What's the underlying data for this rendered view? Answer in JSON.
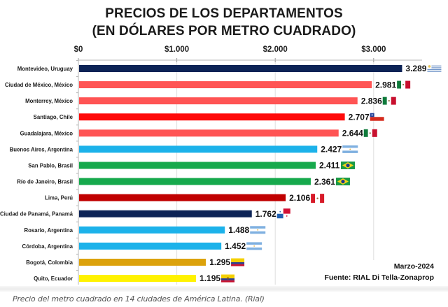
{
  "chart_data": {
    "type": "bar",
    "orientation": "horizontal",
    "title": "PRECIOS DE LOS DEPARTAMENTOS",
    "subtitle": "(EN DÓLARES POR METRO CUADRADO)",
    "xlabel": "",
    "ylabel": "",
    "xlim": [
      0,
      3500
    ],
    "xticks": [
      0,
      1000,
      2000,
      3000
    ],
    "xtick_labels": [
      "$0",
      "$1.000",
      "$2.000",
      "$3.000"
    ],
    "grid": true,
    "categories": [
      "Montevideo, Uruguay",
      "Ciudad de México, México",
      "Monterrey, México",
      "Santiago, Chile",
      "Guadalajara, México",
      "Buenos Aires, Argentina",
      "San Pablo, Brasil",
      "Río de Janeiro, Brasil",
      "Lima, Perú",
      "Ciudad de Panamá, Panamá",
      "Rosario, Argentina",
      "Córdoba, Argentina",
      "Bogotá, Colombia",
      "Quito, Ecuador"
    ],
    "values": [
      3289,
      2981,
      2836,
      2707,
      2644,
      2427,
      2411,
      2361,
      2106,
      1762,
      1488,
      1452,
      1295,
      1195
    ],
    "value_labels": [
      "3.289",
      "2.981",
      "2.836",
      "2.707",
      "2.644",
      "2.427",
      "2.411",
      "2.361",
      "2.106",
      "1.762",
      "1.488",
      "1.452",
      "1.295",
      "1.195"
    ],
    "bar_colors": [
      "#0c2356",
      "#ff5454",
      "#ff5454",
      "#ff0a0a",
      "#ff5454",
      "#1cb2ea",
      "#16a94c",
      "#16a94c",
      "#c00000",
      "#0c2356",
      "#1cb2ea",
      "#1cb2ea",
      "#dca20c",
      "#fff200"
    ],
    "flags": [
      "uruguay",
      "mexico",
      "mexico",
      "chile",
      "mexico",
      "argentina",
      "brazil",
      "brazil",
      "peru",
      "panama",
      "argentina",
      "argentina",
      "colombia",
      "ecuador"
    ],
    "annotations": [
      "Marzo-2024",
      "Fuente: RIAL Di Tella-Zonaprop"
    ]
  },
  "notes": {
    "date": "Marzo-2024",
    "source": "Fuente: RIAL Di Tella-Zonaprop"
  },
  "caption": "Precio del metro cuadrado en 14 ciudades de América Latina. (Rial)"
}
